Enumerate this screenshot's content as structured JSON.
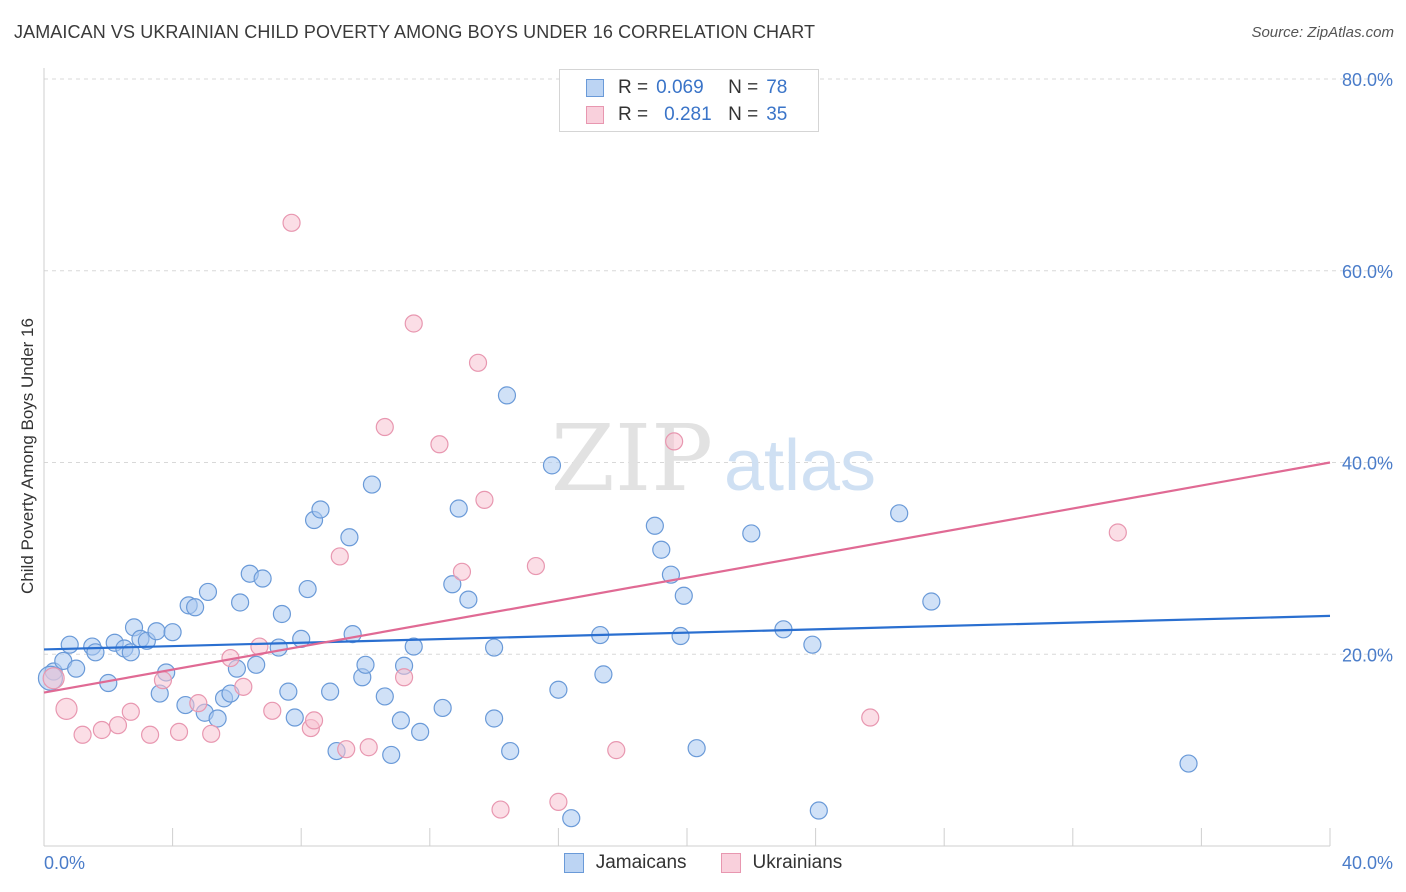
{
  "title": "JAMAICAN VS UKRAINIAN CHILD POVERTY AMONG BOYS UNDER 16 CORRELATION CHART",
  "source": "Source: ZipAtlas.com",
  "watermark": {
    "zip": "ZIP",
    "atlas": "atlas"
  },
  "colors": {
    "jamaican_fill": "#a9c8f0",
    "jamaican_stroke": "#6a9ad8",
    "jamaican_line": "#2a6fd0",
    "ukrainian_fill": "#f7c2d1",
    "ukrainian_stroke": "#e897b0",
    "ukrainian_line": "#e06a94",
    "tick_text": "#4a7cc9"
  },
  "legend": {
    "rows": [
      {
        "r_label": "R =",
        "r_value": "0.069",
        "n_label": "N =",
        "n_value": "78"
      },
      {
        "r_label": "R =",
        "r_value": "0.281",
        "n_label": "N =",
        "n_value": "35"
      }
    ]
  },
  "bottom_legend": {
    "jamaicans": "Jamaicans",
    "ukrainians": "Ukrainians"
  },
  "chart_data": {
    "type": "scatter",
    "title": "JAMAICAN VS UKRAINIAN CHILD POVERTY AMONG BOYS UNDER 16 CORRELATION CHART",
    "xlabel": "",
    "ylabel": "Child Poverty Among Boys Under 16",
    "xlim": [
      0,
      40
    ],
    "ylim": [
      0,
      80
    ],
    "x_tick_labels": [
      "0.0%",
      "40.0%"
    ],
    "y_ticks": [
      20,
      40,
      60,
      80
    ],
    "y_tick_labels": [
      "20.0%",
      "40.0%",
      "60.0%",
      "80.0%"
    ],
    "grid": true,
    "series": [
      {
        "name": "Jamaicans",
        "trend": {
          "x": [
            0,
            40
          ],
          "y": [
            20.5,
            24.0
          ]
        },
        "points": [
          [
            0.3,
            18.2
          ],
          [
            0.6,
            19.3
          ],
          [
            0.8,
            21.0
          ],
          [
            1.0,
            18.5
          ],
          [
            1.5,
            20.8
          ],
          [
            1.6,
            20.2
          ],
          [
            2.0,
            17.0
          ],
          [
            2.2,
            21.2
          ],
          [
            2.5,
            20.6
          ],
          [
            2.8,
            22.8
          ],
          [
            2.7,
            20.2
          ],
          [
            3.0,
            21.6
          ],
          [
            3.2,
            21.4
          ],
          [
            3.5,
            22.4
          ],
          [
            3.6,
            15.9
          ],
          [
            3.8,
            18.1
          ],
          [
            4.0,
            22.3
          ],
          [
            4.4,
            14.7
          ],
          [
            4.5,
            25.1
          ],
          [
            4.7,
            24.9
          ],
          [
            5.0,
            13.9
          ],
          [
            5.1,
            26.5
          ],
          [
            5.4,
            13.3
          ],
          [
            5.6,
            15.4
          ],
          [
            5.8,
            15.9
          ],
          [
            6.0,
            18.5
          ],
          [
            6.1,
            25.4
          ],
          [
            6.4,
            28.4
          ],
          [
            6.6,
            18.9
          ],
          [
            6.8,
            27.9
          ],
          [
            7.3,
            20.7
          ],
          [
            7.4,
            24.2
          ],
          [
            7.6,
            16.1
          ],
          [
            7.8,
            13.4
          ],
          [
            8.0,
            21.6
          ],
          [
            8.2,
            26.8
          ],
          [
            8.4,
            34.0
          ],
          [
            8.6,
            35.1
          ],
          [
            8.9,
            16.1
          ],
          [
            9.1,
            9.9
          ],
          [
            9.5,
            32.2
          ],
          [
            9.6,
            22.1
          ],
          [
            9.9,
            17.6
          ],
          [
            10.0,
            18.9
          ],
          [
            10.2,
            37.7
          ],
          [
            10.6,
            15.6
          ],
          [
            10.8,
            9.5
          ],
          [
            11.1,
            13.1
          ],
          [
            11.2,
            18.8
          ],
          [
            11.5,
            20.8
          ],
          [
            11.7,
            11.9
          ],
          [
            12.4,
            14.4
          ],
          [
            12.7,
            27.3
          ],
          [
            12.9,
            35.2
          ],
          [
            13.2,
            25.7
          ],
          [
            14.0,
            13.3
          ],
          [
            14.0,
            20.7
          ],
          [
            14.4,
            47.0
          ],
          [
            14.5,
            9.9
          ],
          [
            15.8,
            39.7
          ],
          [
            16.0,
            16.3
          ],
          [
            16.4,
            2.9
          ],
          [
            17.3,
            22.0
          ],
          [
            17.4,
            17.9
          ],
          [
            19.0,
            33.4
          ],
          [
            19.2,
            30.9
          ],
          [
            19.5,
            28.3
          ],
          [
            19.8,
            21.9
          ],
          [
            19.9,
            26.1
          ],
          [
            20.3,
            10.2
          ],
          [
            22.0,
            32.6
          ],
          [
            23.0,
            22.6
          ],
          [
            23.9,
            21.0
          ],
          [
            24.1,
            3.7
          ],
          [
            26.6,
            34.7
          ],
          [
            27.6,
            25.5
          ],
          [
            35.6,
            8.6
          ],
          [
            0.2,
            17.5
          ]
        ]
      },
      {
        "name": "Ukrainians",
        "trend": {
          "x": [
            0,
            40
          ],
          "y": [
            16.0,
            40.0
          ]
        },
        "points": [
          [
            0.3,
            17.5
          ],
          [
            0.7,
            14.3
          ],
          [
            1.2,
            11.6
          ],
          [
            1.8,
            12.1
          ],
          [
            2.3,
            12.6
          ],
          [
            2.7,
            14.0
          ],
          [
            3.3,
            11.6
          ],
          [
            3.7,
            17.3
          ],
          [
            4.2,
            11.9
          ],
          [
            4.8,
            14.9
          ],
          [
            5.2,
            11.7
          ],
          [
            5.8,
            19.6
          ],
          [
            6.2,
            16.6
          ],
          [
            6.7,
            20.8
          ],
          [
            7.1,
            14.1
          ],
          [
            7.7,
            65.0
          ],
          [
            8.3,
            12.3
          ],
          [
            8.4,
            13.1
          ],
          [
            9.2,
            30.2
          ],
          [
            9.4,
            10.1
          ],
          [
            10.1,
            10.3
          ],
          [
            10.6,
            43.7
          ],
          [
            11.2,
            17.6
          ],
          [
            11.5,
            54.5
          ],
          [
            12.3,
            41.9
          ],
          [
            13.0,
            28.6
          ],
          [
            13.5,
            50.4
          ],
          [
            13.7,
            36.1
          ],
          [
            14.2,
            3.8
          ],
          [
            15.3,
            29.2
          ],
          [
            16.0,
            4.6
          ],
          [
            17.8,
            10.0
          ],
          [
            19.6,
            42.2
          ],
          [
            25.7,
            13.4
          ],
          [
            33.4,
            32.7
          ]
        ]
      }
    ]
  }
}
